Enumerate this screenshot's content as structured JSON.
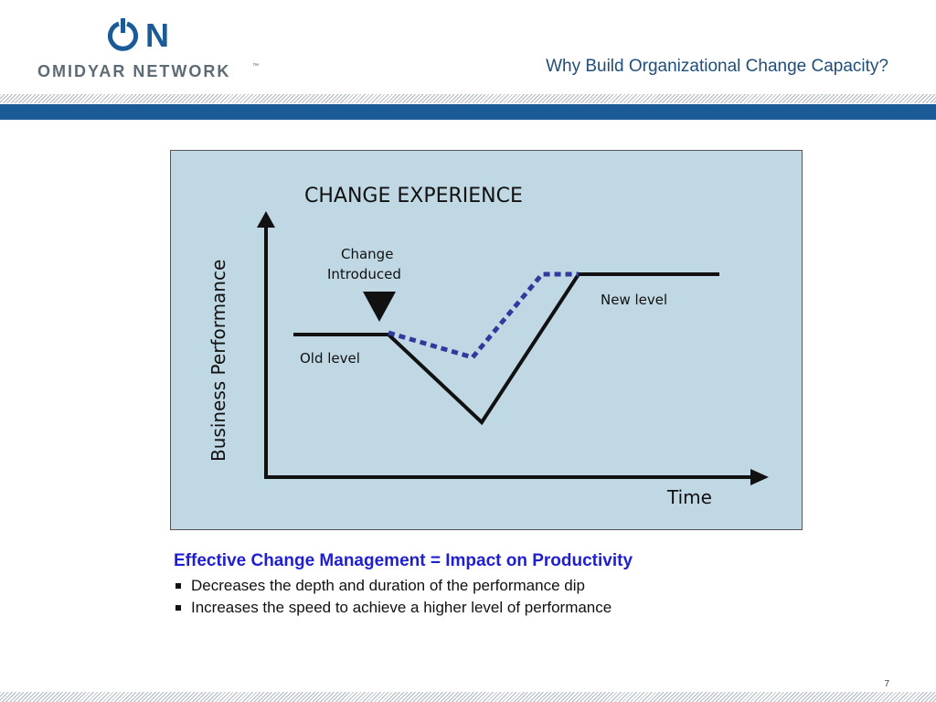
{
  "header": {
    "logo_mark": "ON",
    "logo_text": "OMIDYAR NETWORK",
    "logo_tm": "™",
    "slide_title": "Why Build Organizational Change Capacity?"
  },
  "diagram": {
    "title": "CHANGE  EXPERIENCE",
    "change_label_line1": "Change",
    "change_label_line2": "Introduced",
    "new_level_label": "New level",
    "old_level_label": "Old level",
    "y_axis_label": "Business Performance",
    "x_axis_label": "Time",
    "solid_line_color": "#111111",
    "dashed_line_color": "#2f3a9c"
  },
  "body": {
    "headline": "Effective Change Management = Impact on Productivity",
    "bullets": [
      "Decreases the depth and duration of the performance dip",
      "Increases the speed to achieve a higher level of performance"
    ]
  },
  "footer": {
    "page_number": "7"
  },
  "colors": {
    "brand_blue": "#1a5a96",
    "headline_blue": "#1f1fd1",
    "diagram_bg": "#bfd8e3"
  }
}
